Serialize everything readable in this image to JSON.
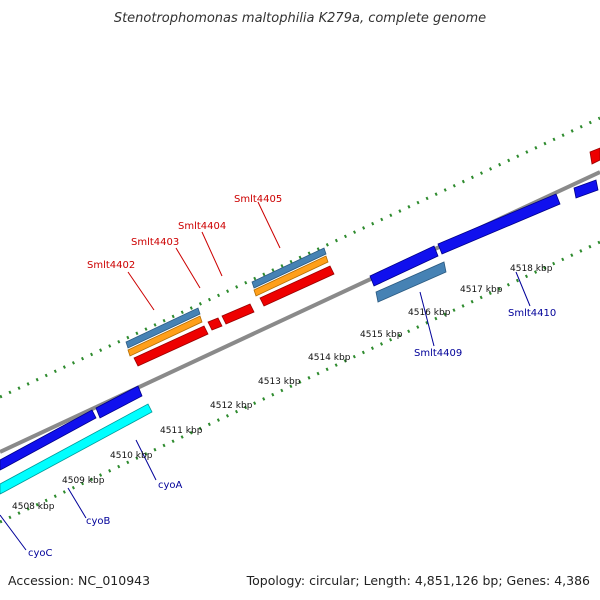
{
  "title": "Stenotrophomonas maltophilia K279a, complete genome",
  "footer": {
    "accession": "Accession: NC_010943",
    "summary": "Topology: circular; Length: 4,851,126 bp; Genes: 4,386"
  },
  "colors": {
    "backbone": "#8a8a8a",
    "ticks": "#2e8b2e",
    "forward_gene": "#ff0000",
    "reverse_gene": "#0000ff",
    "operon_gene": "#00ffff",
    "steelblue_feature": "#4682b4",
    "orange_feature": "#ff9f1a",
    "label_red": "#cc0000",
    "label_blue": "#000099"
  },
  "ticks": {
    "labels": [
      "4508 kbp",
      "4509 kbp",
      "4510 kbp",
      "4511 kbp",
      "4512 kbp",
      "4513 kbp",
      "4514 kbp",
      "4515 kbp",
      "4516 kbp",
      "4517 kbp",
      "4518 kbp"
    ]
  },
  "genes": {
    "red_labels": [
      "Smlt4402",
      "Smlt4403",
      "Smlt4404",
      "Smlt4405"
    ],
    "blue_labels": [
      "cyoC",
      "cyoB",
      "cyoA",
      "Smlt4409",
      "Smlt4410"
    ]
  }
}
